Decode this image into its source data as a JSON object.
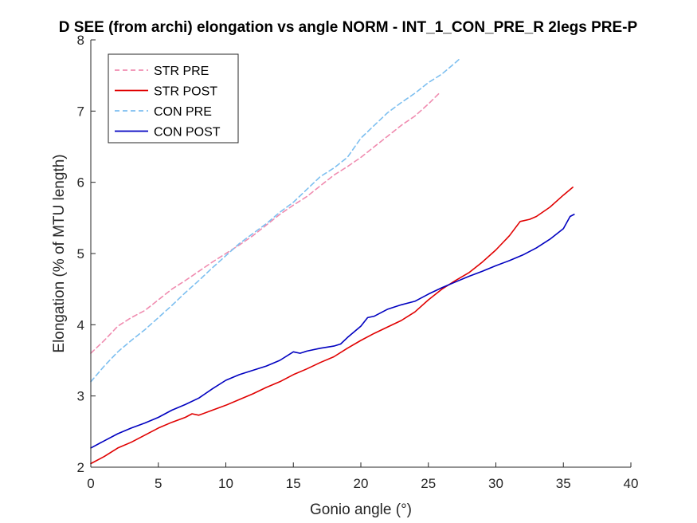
{
  "chart_data": {
    "type": "line",
    "title": "D SEE (from archi) elongation vs angle NORM - INT_1_CON_PRE_R 2legs PRE-P",
    "xlabel": "Gonio angle (°)",
    "ylabel": "Elongation (% of MTU length)",
    "xlim": [
      0,
      40
    ],
    "ylim": [
      2,
      8
    ],
    "xticks": [
      "0",
      "5",
      "10",
      "15",
      "20",
      "25",
      "30",
      "35",
      "40"
    ],
    "yticks": [
      "2",
      "3",
      "4",
      "5",
      "6",
      "7",
      "8"
    ],
    "grid": false,
    "legend_position": "top-left",
    "series": [
      {
        "name": "STR PRE",
        "color": "#f08cb0",
        "style": "dashed",
        "points": [
          [
            0,
            3.6
          ],
          [
            1,
            3.78
          ],
          [
            2,
            3.98
          ],
          [
            3,
            4.1
          ],
          [
            4,
            4.2
          ],
          [
            5,
            4.35
          ],
          [
            6,
            4.5
          ],
          [
            7,
            4.62
          ],
          [
            8,
            4.75
          ],
          [
            9,
            4.88
          ],
          [
            10,
            5.0
          ],
          [
            11,
            5.12
          ],
          [
            12,
            5.25
          ],
          [
            13,
            5.4
          ],
          [
            14,
            5.55
          ],
          [
            15,
            5.68
          ],
          [
            16,
            5.8
          ],
          [
            17,
            5.95
          ],
          [
            18,
            6.1
          ],
          [
            19,
            6.22
          ],
          [
            20,
            6.35
          ],
          [
            21,
            6.5
          ],
          [
            22,
            6.65
          ],
          [
            23,
            6.8
          ],
          [
            24,
            6.93
          ],
          [
            25,
            7.1
          ],
          [
            25.8,
            7.25
          ]
        ]
      },
      {
        "name": "STR POST",
        "color": "#e00000",
        "style": "solid",
        "points": [
          [
            0,
            2.05
          ],
          [
            1,
            2.15
          ],
          [
            2,
            2.27
          ],
          [
            3,
            2.35
          ],
          [
            4,
            2.45
          ],
          [
            5,
            2.55
          ],
          [
            6,
            2.63
          ],
          [
            7,
            2.7
          ],
          [
            7.5,
            2.75
          ],
          [
            8,
            2.73
          ],
          [
            9,
            2.8
          ],
          [
            10,
            2.87
          ],
          [
            11,
            2.95
          ],
          [
            12,
            3.03
          ],
          [
            13,
            3.12
          ],
          [
            14,
            3.2
          ],
          [
            15,
            3.3
          ],
          [
            16,
            3.38
          ],
          [
            17,
            3.47
          ],
          [
            18,
            3.55
          ],
          [
            19,
            3.67
          ],
          [
            20,
            3.78
          ],
          [
            21,
            3.88
          ],
          [
            22,
            3.97
          ],
          [
            23,
            4.06
          ],
          [
            24,
            4.18
          ],
          [
            25,
            4.35
          ],
          [
            26,
            4.5
          ],
          [
            27,
            4.62
          ],
          [
            28,
            4.73
          ],
          [
            29,
            4.88
          ],
          [
            30,
            5.05
          ],
          [
            31,
            5.25
          ],
          [
            31.8,
            5.45
          ],
          [
            32.5,
            5.48
          ],
          [
            33,
            5.52
          ],
          [
            34,
            5.65
          ],
          [
            35,
            5.82
          ],
          [
            35.7,
            5.93
          ]
        ]
      },
      {
        "name": "CON PRE",
        "color": "#7dbff0",
        "style": "dashed",
        "points": [
          [
            0,
            3.2
          ],
          [
            1,
            3.42
          ],
          [
            2,
            3.62
          ],
          [
            3,
            3.78
          ],
          [
            4,
            3.93
          ],
          [
            5,
            4.1
          ],
          [
            6,
            4.27
          ],
          [
            7,
            4.45
          ],
          [
            8,
            4.62
          ],
          [
            9,
            4.8
          ],
          [
            10,
            4.97
          ],
          [
            11,
            5.14
          ],
          [
            12,
            5.28
          ],
          [
            13,
            5.42
          ],
          [
            14,
            5.58
          ],
          [
            15,
            5.72
          ],
          [
            16,
            5.9
          ],
          [
            17,
            6.08
          ],
          [
            18,
            6.2
          ],
          [
            19,
            6.35
          ],
          [
            20,
            6.62
          ],
          [
            21,
            6.8
          ],
          [
            22,
            6.98
          ],
          [
            23,
            7.12
          ],
          [
            24,
            7.25
          ],
          [
            25,
            7.4
          ],
          [
            26,
            7.52
          ],
          [
            27,
            7.68
          ],
          [
            27.3,
            7.73
          ]
        ]
      },
      {
        "name": "CON POST",
        "color": "#0000c0",
        "style": "solid",
        "points": [
          [
            0,
            2.27
          ],
          [
            1,
            2.37
          ],
          [
            2,
            2.47
          ],
          [
            3,
            2.55
          ],
          [
            4,
            2.62
          ],
          [
            5,
            2.7
          ],
          [
            6,
            2.8
          ],
          [
            7,
            2.88
          ],
          [
            8,
            2.97
          ],
          [
            9,
            3.1
          ],
          [
            10,
            3.22
          ],
          [
            11,
            3.3
          ],
          [
            12,
            3.36
          ],
          [
            13,
            3.42
          ],
          [
            14,
            3.5
          ],
          [
            15,
            3.62
          ],
          [
            15.5,
            3.6
          ],
          [
            16,
            3.63
          ],
          [
            17,
            3.67
          ],
          [
            18,
            3.7
          ],
          [
            18.5,
            3.73
          ],
          [
            19,
            3.82
          ],
          [
            20,
            3.98
          ],
          [
            20.5,
            4.1
          ],
          [
            21,
            4.12
          ],
          [
            22,
            4.22
          ],
          [
            23,
            4.28
          ],
          [
            24,
            4.33
          ],
          [
            25,
            4.43
          ],
          [
            26,
            4.52
          ],
          [
            27,
            4.6
          ],
          [
            28,
            4.68
          ],
          [
            29,
            4.75
          ],
          [
            30,
            4.83
          ],
          [
            31,
            4.9
          ],
          [
            32,
            4.98
          ],
          [
            33,
            5.08
          ],
          [
            34,
            5.2
          ],
          [
            35,
            5.35
          ],
          [
            35.5,
            5.52
          ],
          [
            35.8,
            5.55
          ]
        ]
      }
    ]
  }
}
